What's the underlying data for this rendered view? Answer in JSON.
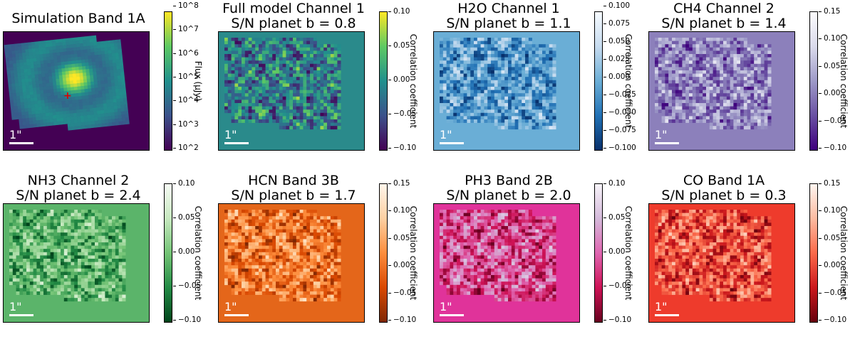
{
  "chart_data": [
    {
      "type": "heatmap",
      "title_lines": [
        "Simulation Band 1A"
      ],
      "colormap": "viridis",
      "scale": "log",
      "cbar_ticks": [
        "10^8",
        "10^7",
        "10^6",
        "10^5",
        "10^4",
        "10^3",
        "10^2"
      ],
      "cbar_label": "Flux (μJy)",
      "scalebar_label": "1\"",
      "marker": "+",
      "marker_color": "#e00000",
      "background": "#440154",
      "seed": 3
    },
    {
      "type": "heatmap",
      "title_lines": [
        "Full model Channel 1",
        "S/N planet b = 0.8"
      ],
      "colormap": "viridis",
      "vrange": [
        -0.1,
        0.1
      ],
      "cbar_ticks": [
        "0.10",
        "0.05",
        "0.00",
        "−0.05",
        "−0.10"
      ],
      "cbar_label": "Correlation coefficient",
      "scalebar_label": "1\"",
      "background": "#2a8a8b",
      "seed": 11
    },
    {
      "type": "heatmap",
      "title_lines": [
        "H2O Channel 1",
        "S/N planet b = 1.1"
      ],
      "colormap": "blues",
      "vrange": [
        -0.1,
        0.1
      ],
      "cbar_ticks": [
        "0.100",
        "0.075",
        "0.050",
        "0.025",
        "0.000",
        "−0.025",
        "−0.050",
        "−0.075",
        "−0.100"
      ],
      "cbar_label": "Correlation coefficient",
      "scalebar_label": "1\"",
      "background": "#6aaed6",
      "seed": 23
    },
    {
      "type": "heatmap",
      "title_lines": [
        "CH4 Channel 2",
        "S/N planet b = 1.4"
      ],
      "colormap": "purples",
      "vrange": [
        -0.1,
        0.15
      ],
      "cbar_ticks": [
        "0.15",
        "0.10",
        "0.05",
        "0.00",
        "−0.05",
        "−0.10"
      ],
      "cbar_label": "Correlation coefficient",
      "scalebar_label": "1\"",
      "background": "#8c80bb",
      "seed": 37
    },
    {
      "type": "heatmap",
      "title_lines": [
        "NH3 Channel 2",
        "S/N planet b = 2.4"
      ],
      "colormap": "greens",
      "vrange": [
        -0.1,
        0.12
      ],
      "cbar_ticks": [
        "0.10",
        "0.05",
        "0.00",
        "−0.05",
        "−0.10"
      ],
      "cbar_label": "Correlation coefficient",
      "scalebar_label": "1\"",
      "background": "#5bb46a",
      "seed": 41
    },
    {
      "type": "heatmap",
      "title_lines": [
        "HCN Band 3B",
        "S/N planet b = 1.7"
      ],
      "colormap": "oranges",
      "vrange": [
        -0.1,
        0.18
      ],
      "cbar_ticks": [
        "0.15",
        "0.10",
        "0.05",
        "0.00",
        "−0.05",
        "−0.10"
      ],
      "cbar_label": "Correlation coefficient",
      "scalebar_label": "1\"",
      "background": "#e4661a",
      "seed": 53
    },
    {
      "type": "heatmap",
      "title_lines": [
        "PH3 Band 2B",
        "S/N planet b = 2.0"
      ],
      "colormap": "pinks",
      "vrange": [
        -0.1,
        0.14
      ],
      "cbar_ticks": [
        "0.10",
        "0.05",
        "0.00",
        "−0.05",
        "−0.10"
      ],
      "cbar_label": "Correlation coefficient",
      "scalebar_label": "1\"",
      "background": "#e0339a",
      "seed": 67
    },
    {
      "type": "heatmap",
      "title_lines": [
        "CO Band 1A",
        "S/N planet b = 0.3"
      ],
      "colormap": "reds",
      "vrange": [
        -0.1,
        0.15
      ],
      "cbar_ticks": [
        "0.15",
        "0.10",
        "0.05",
        "0.00",
        "−0.05",
        "−0.10"
      ],
      "cbar_label": "Correlation coefficient",
      "scalebar_label": "1\"",
      "background": "#ee3b2c",
      "seed": 79
    }
  ]
}
